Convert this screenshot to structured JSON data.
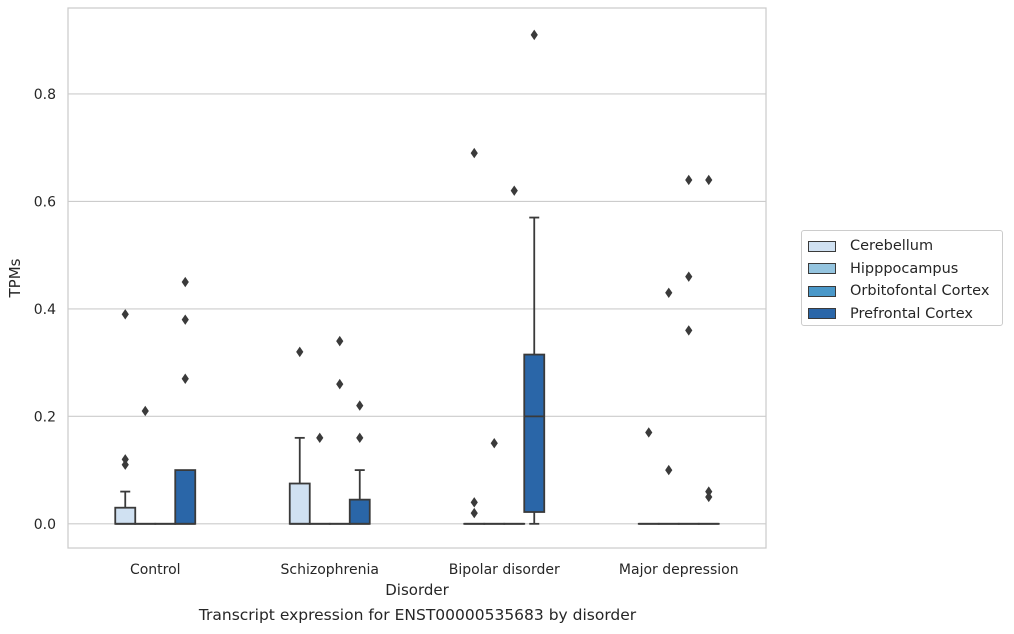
{
  "caption": "Transcript expression for ENST00000535683 by disorder",
  "chart_data": {
    "type": "box",
    "xlabel": "Disorder",
    "ylabel": "TPMs",
    "ylim": [
      -0.045,
      0.96
    ],
    "yticks": [
      0.0,
      0.2,
      0.4,
      0.6,
      0.8
    ],
    "ytick_labels": [
      "0.0",
      "0.2",
      "0.4",
      "0.6",
      "0.8"
    ],
    "grid": true,
    "legend_position": "right",
    "categories": [
      "Control",
      "Schizophrenia",
      "Bipolar disorder",
      "Major depression"
    ],
    "series": [
      {
        "name": "Cerebellum",
        "color": "#d0e1f2",
        "boxes": [
          {
            "q1": 0.0,
            "median": 0.0,
            "q3": 0.03,
            "whisker_low": 0.0,
            "whisker_high": 0.06,
            "outliers": [
              0.39,
              0.12,
              0.11
            ]
          },
          {
            "q1": 0.0,
            "median": 0.0,
            "q3": 0.075,
            "whisker_low": 0.0,
            "whisker_high": 0.16,
            "outliers": [
              0.32
            ]
          },
          {
            "q1": 0.0,
            "median": 0.0,
            "q3": 0.0,
            "whisker_low": 0.0,
            "whisker_high": 0.0,
            "outliers": [
              0.69,
              0.04,
              0.02
            ]
          },
          {
            "q1": 0.0,
            "median": 0.0,
            "q3": 0.0,
            "whisker_low": 0.0,
            "whisker_high": 0.0,
            "outliers": [
              0.17
            ]
          }
        ]
      },
      {
        "name": "Hipppocampus",
        "color": "#94c4df",
        "boxes": [
          {
            "q1": 0.0,
            "median": 0.0,
            "q3": 0.0,
            "whisker_low": 0.0,
            "whisker_high": 0.0,
            "outliers": [
              0.21
            ]
          },
          {
            "q1": 0.0,
            "median": 0.0,
            "q3": 0.0,
            "whisker_low": 0.0,
            "whisker_high": 0.0,
            "outliers": [
              0.16
            ]
          },
          {
            "q1": 0.0,
            "median": 0.0,
            "q3": 0.0,
            "whisker_low": 0.0,
            "whisker_high": 0.0,
            "outliers": [
              0.15
            ]
          },
          {
            "q1": 0.0,
            "median": 0.0,
            "q3": 0.0,
            "whisker_low": 0.0,
            "whisker_high": 0.0,
            "outliers": [
              0.43,
              0.1
            ]
          }
        ]
      },
      {
        "name": "Orbitofontal Cortex",
        "color": "#4a98c9",
        "boxes": [
          {
            "q1": 0.0,
            "median": 0.0,
            "q3": 0.0,
            "whisker_low": 0.0,
            "whisker_high": 0.0,
            "outliers": []
          },
          {
            "q1": 0.0,
            "median": 0.0,
            "q3": 0.0,
            "whisker_low": 0.0,
            "whisker_high": 0.0,
            "outliers": [
              0.34,
              0.26
            ]
          },
          {
            "q1": 0.0,
            "median": 0.0,
            "q3": 0.0,
            "whisker_low": 0.0,
            "whisker_high": 0.0,
            "outliers": [
              0.62
            ]
          },
          {
            "q1": 0.0,
            "median": 0.0,
            "q3": 0.0,
            "whisker_low": 0.0,
            "whisker_high": 0.0,
            "outliers": [
              0.64,
              0.46,
              0.36
            ]
          }
        ]
      },
      {
        "name": "Prefrontal Cortex",
        "color": "#2a66a8",
        "boxes": [
          {
            "q1": 0.0,
            "median": 0.0,
            "q3": 0.1,
            "whisker_low": 0.0,
            "whisker_high": 0.1,
            "outliers": [
              0.45,
              0.38,
              0.27
            ]
          },
          {
            "q1": 0.0,
            "median": 0.0,
            "q3": 0.045,
            "whisker_low": 0.0,
            "whisker_high": 0.1,
            "outliers": [
              0.22,
              0.16
            ]
          },
          {
            "q1": 0.022,
            "median": 0.2,
            "q3": 0.315,
            "whisker_low": 0.0,
            "whisker_high": 0.57,
            "outliers": [
              0.91
            ]
          },
          {
            "q1": 0.0,
            "median": 0.0,
            "q3": 0.0,
            "whisker_low": 0.0,
            "whisker_high": 0.0,
            "outliers": [
              0.64,
              0.06,
              0.05
            ]
          }
        ]
      }
    ]
  }
}
